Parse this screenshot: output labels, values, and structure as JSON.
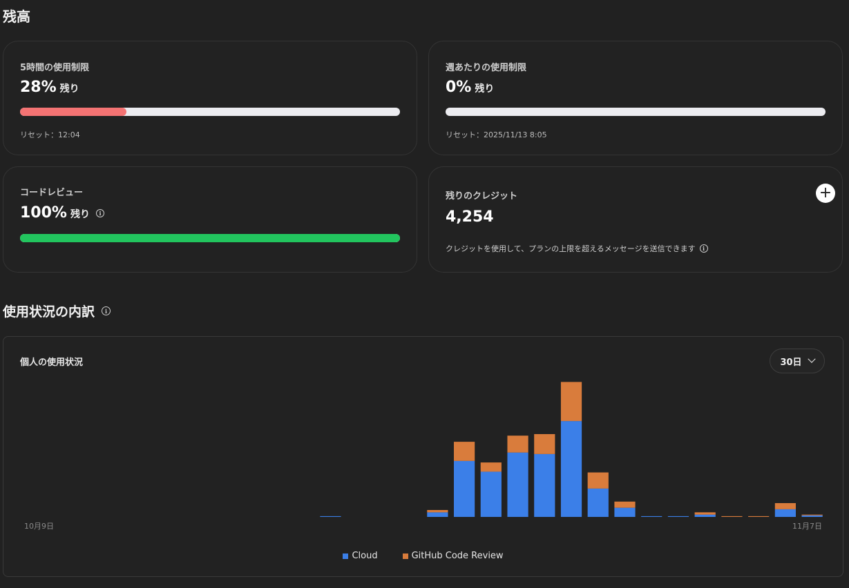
{
  "balance": {
    "title": "残高",
    "five_hour": {
      "label": "5時間の使用制限",
      "value": "28%",
      "suffix": "残り",
      "fraction": 0.28,
      "reset": "リセット：12:04",
      "color": "#f47373"
    },
    "weekly": {
      "label": "週あたりの使用制限",
      "value": "0%",
      "suffix": "残り",
      "fraction": 0.0,
      "reset": "リセット：2025/11/13 8:05",
      "color": "#f47373"
    },
    "code_review": {
      "label": "コードレビュー",
      "value": "100%",
      "suffix": "残り",
      "fraction": 1.0,
      "color": "#22c55e",
      "info_icon": "info-icon"
    },
    "credits": {
      "label": "残りのクレジット",
      "value": "4,254",
      "note": "クレジットを使用して、プランの上限を超えるメッセージを送信できます",
      "add_icon": "plus-icon"
    }
  },
  "usage": {
    "title": "使用状況の内訳",
    "chart_title": "個人の使用状況",
    "range": "30日",
    "legend": {
      "cloud": "Cloud",
      "review": "GitHub Code Review"
    },
    "colors": {
      "cloud": "#3b7fe8",
      "review": "#d97c3c"
    }
  },
  "chart_data": {
    "type": "bar",
    "stacked": true,
    "x_start_label": "10月9日",
    "x_end_label": "11月7日",
    "series": [
      {
        "name": "Cloud",
        "values": [
          0,
          0,
          0,
          0,
          0,
          0,
          0,
          0,
          0,
          0,
          0,
          1,
          0,
          0,
          0,
          6,
          73,
          59,
          84,
          82,
          125,
          37,
          12,
          1,
          1,
          3,
          0,
          0,
          10,
          2
        ]
      },
      {
        "name": "GitHub Code Review",
        "values": [
          0,
          0,
          0,
          0,
          0,
          0,
          0,
          0,
          0,
          0,
          0,
          0,
          0,
          0,
          0,
          3,
          25,
          12,
          22,
          26,
          51,
          21,
          8,
          0,
          0,
          3,
          1,
          1,
          8,
          1
        ]
      }
    ],
    "ylim": [
      0,
      180
    ],
    "grid": false,
    "legend_position": "bottom"
  }
}
